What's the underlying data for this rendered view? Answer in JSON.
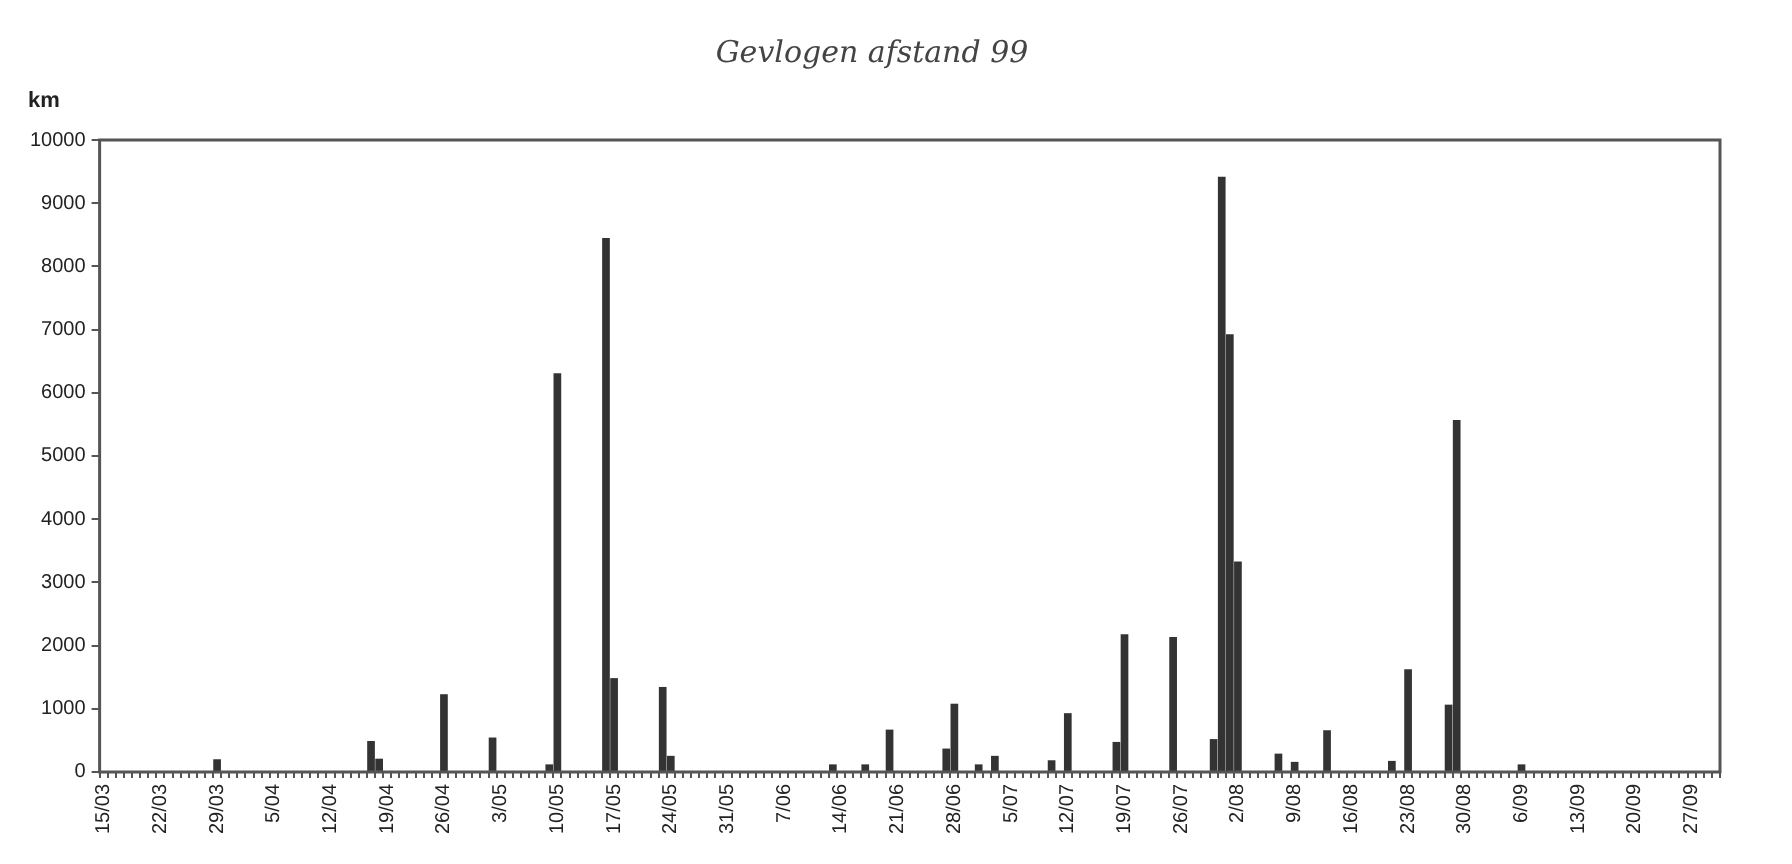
{
  "chart_data": {
    "type": "bar",
    "title": "Gevlogen afstand 99",
    "ylabel": "km",
    "categories": [
      "15/03",
      null,
      null,
      null,
      null,
      null,
      null,
      "22/03",
      null,
      null,
      null,
      null,
      null,
      null,
      "29/03",
      null,
      null,
      null,
      null,
      null,
      null,
      "5/04",
      null,
      null,
      null,
      null,
      null,
      null,
      "12/04",
      null,
      null,
      null,
      null,
      null,
      null,
      "19/04",
      null,
      null,
      null,
      null,
      null,
      null,
      "26/04",
      null,
      null,
      null,
      null,
      null,
      null,
      "3/05",
      null,
      null,
      null,
      null,
      null,
      null,
      "10/05",
      null,
      null,
      null,
      null,
      null,
      null,
      "17/05",
      null,
      null,
      null,
      null,
      null,
      null,
      "24/05",
      null,
      null,
      null,
      null,
      null,
      null,
      "31/05",
      null,
      null,
      null,
      null,
      null,
      null,
      "7/06",
      null,
      null,
      null,
      null,
      null,
      null,
      "14/06",
      null,
      null,
      null,
      null,
      null,
      null,
      "21/06",
      null,
      null,
      null,
      null,
      null,
      null,
      "28/06",
      null,
      null,
      null,
      null,
      null,
      null,
      "5/07",
      null,
      null,
      null,
      null,
      null,
      null,
      "12/07",
      null,
      null,
      null,
      null,
      null,
      null,
      "19/07",
      null,
      null,
      null,
      null,
      null,
      null,
      "26/07",
      null,
      null,
      null,
      null,
      null,
      null,
      "2/08",
      null,
      null,
      null,
      null,
      null,
      null,
      "9/08",
      null,
      null,
      null,
      null,
      null,
      null,
      "16/08",
      null,
      null,
      null,
      null,
      null,
      null,
      "23/08",
      null,
      null,
      null,
      null,
      null,
      null,
      "30/08",
      null,
      null,
      null,
      null,
      null,
      null,
      "6/09",
      null,
      null,
      null,
      null,
      null,
      null,
      "13/09",
      null,
      null,
      null,
      null,
      null,
      null,
      "20/09",
      null,
      null,
      null,
      null,
      null,
      null,
      "27/09",
      null,
      null,
      null
    ],
    "values": [
      0,
      0,
      0,
      0,
      0,
      0,
      0,
      0,
      0,
      0,
      0,
      0,
      0,
      0,
      200,
      0,
      0,
      0,
      0,
      0,
      0,
      0,
      0,
      0,
      0,
      0,
      0,
      0,
      0,
      0,
      0,
      0,
      0,
      490,
      210,
      0,
      0,
      0,
      0,
      0,
      0,
      0,
      1230,
      0,
      0,
      0,
      0,
      0,
      545,
      0,
      0,
      0,
      0,
      0,
      0,
      120,
      6310,
      0,
      0,
      0,
      0,
      0,
      8450,
      1485,
      0,
      0,
      0,
      0,
      0,
      1345,
      255,
      0,
      0,
      0,
      0,
      0,
      0,
      0,
      0,
      0,
      0,
      0,
      0,
      0,
      0,
      0,
      0,
      0,
      0,
      0,
      120,
      0,
      0,
      0,
      120,
      0,
      0,
      670,
      0,
      0,
      0,
      0,
      0,
      0,
      370,
      1080,
      0,
      0,
      120,
      0,
      255,
      0,
      0,
      0,
      0,
      0,
      0,
      185,
      0,
      930,
      0,
      0,
      0,
      0,
      0,
      475,
      2180,
      0,
      0,
      0,
      0,
      0,
      2135,
      0,
      0,
      0,
      0,
      520,
      9420,
      6925,
      3330,
      0,
      0,
      0,
      0,
      290,
      0,
      160,
      0,
      0,
      0,
      660,
      0,
      0,
      0,
      0,
      0,
      0,
      0,
      175,
      0,
      1625,
      0,
      0,
      0,
      0,
      1065,
      5570,
      0,
      0,
      0,
      0,
      0,
      0,
      0,
      120,
      0,
      0,
      0,
      0,
      0,
      0,
      0,
      0,
      0,
      0,
      0,
      0,
      0,
      0,
      0,
      0,
      0,
      0,
      0,
      0,
      0,
      0,
      0,
      0
    ],
    "color": "#333333",
    "ylim": [
      0,
      10000
    ],
    "yticks": [
      0,
      1000,
      2000,
      3000,
      4000,
      5000,
      6000,
      7000,
      8000,
      9000,
      10000
    ],
    "grid": false,
    "legend": false
  }
}
